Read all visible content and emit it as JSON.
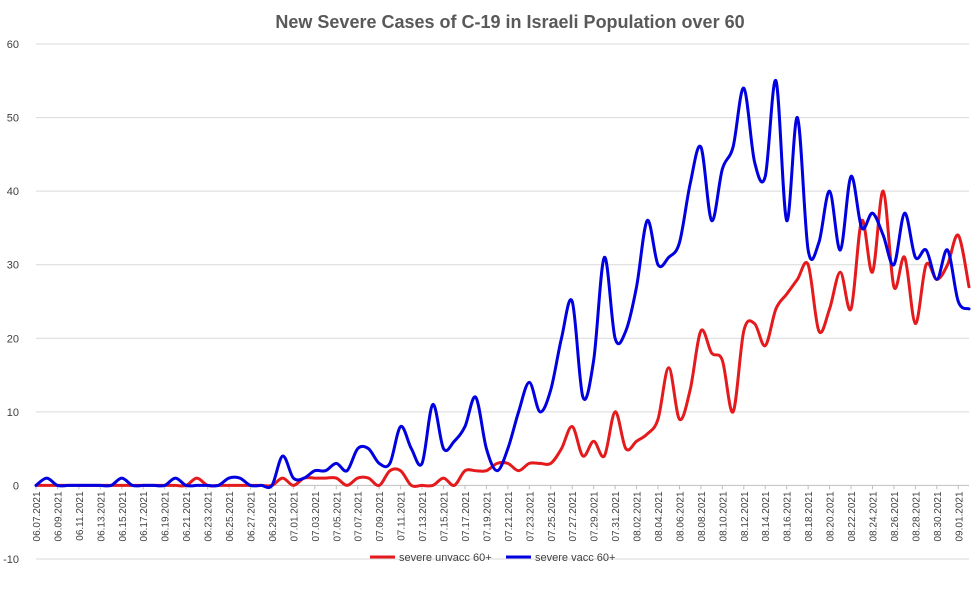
{
  "chart_data": {
    "type": "line",
    "title": "New Severe Cases of C-19 in Israeli Population over 60",
    "xlabel": "",
    "ylabel": "",
    "ylim": [
      -10,
      60
    ],
    "yticks": [
      -10,
      0,
      10,
      20,
      30,
      40,
      50,
      60
    ],
    "grid": "horizontal",
    "legend_position": "bottom",
    "x": [
      "06.07.2021",
      "06.08.2021",
      "06.09.2021",
      "06.10.2021",
      "06.11.2021",
      "06.12.2021",
      "06.13.2021",
      "06.14.2021",
      "06.15.2021",
      "06.16.2021",
      "06.17.2021",
      "06.18.2021",
      "06.19.2021",
      "06.20.2021",
      "06.21.2021",
      "06.22.2021",
      "06.23.2021",
      "06.24.2021",
      "06.25.2021",
      "06.26.2021",
      "06.27.2021",
      "06.28.2021",
      "06.29.2021",
      "06.30.2021",
      "07.01.2021",
      "07.02.2021",
      "07.03.2021",
      "07.04.2021",
      "07.05.2021",
      "07.06.2021",
      "07.07.2021",
      "07.08.2021",
      "07.09.2021",
      "07.10.2021",
      "07.11.2021",
      "07.12.2021",
      "07.13.2021",
      "07.14.2021",
      "07.15.2021",
      "07.16.2021",
      "07.17.2021",
      "07.18.2021",
      "07.19.2021",
      "07.20.2021",
      "07.21.2021",
      "07.22.2021",
      "07.23.2021",
      "07.24.2021",
      "07.25.2021",
      "07.26.2021",
      "07.27.2021",
      "07.28.2021",
      "07.29.2021",
      "07.30.2021",
      "07.31.2021",
      "08.01.2021",
      "08.02.2021",
      "08.03.2021",
      "08.04.2021",
      "08.05.2021",
      "08.06.2021",
      "08.07.2021",
      "08.08.2021",
      "08.09.2021",
      "08.10.2021",
      "08.11.2021",
      "08.12.2021",
      "08.13.2021",
      "08.14.2021",
      "08.15.2021",
      "08.16.2021",
      "08.17.2021",
      "08.18.2021",
      "08.19.2021",
      "08.20.2021",
      "08.21.2021",
      "08.22.2021",
      "08.23.2021",
      "08.24.2021",
      "08.25.2021",
      "08.26.2021",
      "08.27.2021",
      "08.28.2021",
      "08.29.2021",
      "08.30.2021",
      "08.31.2021",
      "09.01.2021",
      "09.02.2021"
    ],
    "x_tick_labels": [
      "06.07.2021",
      "06.09.2021",
      "06.11.2021",
      "06.13.2021",
      "06.15.2021",
      "06.17.2021",
      "06.19.2021",
      "06.21.2021",
      "06.23.2021",
      "06.25.2021",
      "06.27.2021",
      "06.29.2021",
      "07.01.2021",
      "07.03.2021",
      "07.05.2021",
      "07.07.2021",
      "07.09.2021",
      "07.11.2021",
      "07.13.2021",
      "07.15.2021",
      "07.17.2021",
      "07.19.2021",
      "07.21.2021",
      "07.23.2021",
      "07.25.2021",
      "07.27.2021",
      "07.29.2021",
      "07.31.2021",
      "08.02.2021",
      "08.04.2021",
      "08.06.2021",
      "08.08.2021",
      "08.10.2021",
      "08.12.2021",
      "08.14.2021",
      "08.16.2021",
      "08.18.2021",
      "08.20.2021",
      "08.22.2021",
      "08.24.2021",
      "08.26.2021",
      "08.28.2021",
      "08.30.2021",
      "09.01.2021"
    ],
    "series": [
      {
        "name": "severe unvacc 60+",
        "color": "#e41a1c",
        "values": [
          0,
          0,
          0,
          0,
          0,
          0,
          0,
          0,
          0,
          0,
          0,
          0,
          0,
          0,
          0,
          1,
          0,
          0,
          0,
          0,
          0,
          0,
          0,
          1,
          0,
          1,
          1,
          1,
          1,
          0,
          1,
          1,
          0,
          2,
          2,
          0,
          0,
          0,
          1,
          0,
          2,
          2,
          2,
          3,
          3,
          2,
          3,
          3,
          3,
          5,
          8,
          4,
          6,
          4,
          10,
          5,
          6,
          7,
          9,
          16,
          9,
          13,
          21,
          18,
          17,
          10,
          21,
          22,
          19,
          24,
          26,
          28,
          30,
          21,
          24,
          29,
          24,
          36,
          29,
          40,
          27,
          31,
          22,
          30,
          28,
          30,
          34,
          27
        ]
      },
      {
        "name": "severe vacc 60+",
        "color": "#0000e0",
        "values": [
          0,
          1,
          0,
          0,
          0,
          0,
          0,
          0,
          1,
          0,
          0,
          0,
          0,
          1,
          0,
          0,
          0,
          0,
          1,
          1,
          0,
          0,
          0,
          4,
          1,
          1,
          2,
          2,
          3,
          2,
          5,
          5,
          3,
          3,
          8,
          5,
          3,
          11,
          5,
          6,
          8,
          12,
          5,
          2,
          5,
          10,
          14,
          10,
          13,
          20,
          25,
          12,
          17,
          31,
          20,
          21,
          27,
          36,
          30,
          31,
          33,
          41,
          46,
          36,
          43,
          46,
          54,
          44,
          42,
          55,
          36,
          50,
          32,
          33,
          40,
          32,
          42,
          35,
          37,
          34,
          30,
          37,
          31,
          32,
          28,
          32,
          25,
          24
        ]
      }
    ]
  }
}
